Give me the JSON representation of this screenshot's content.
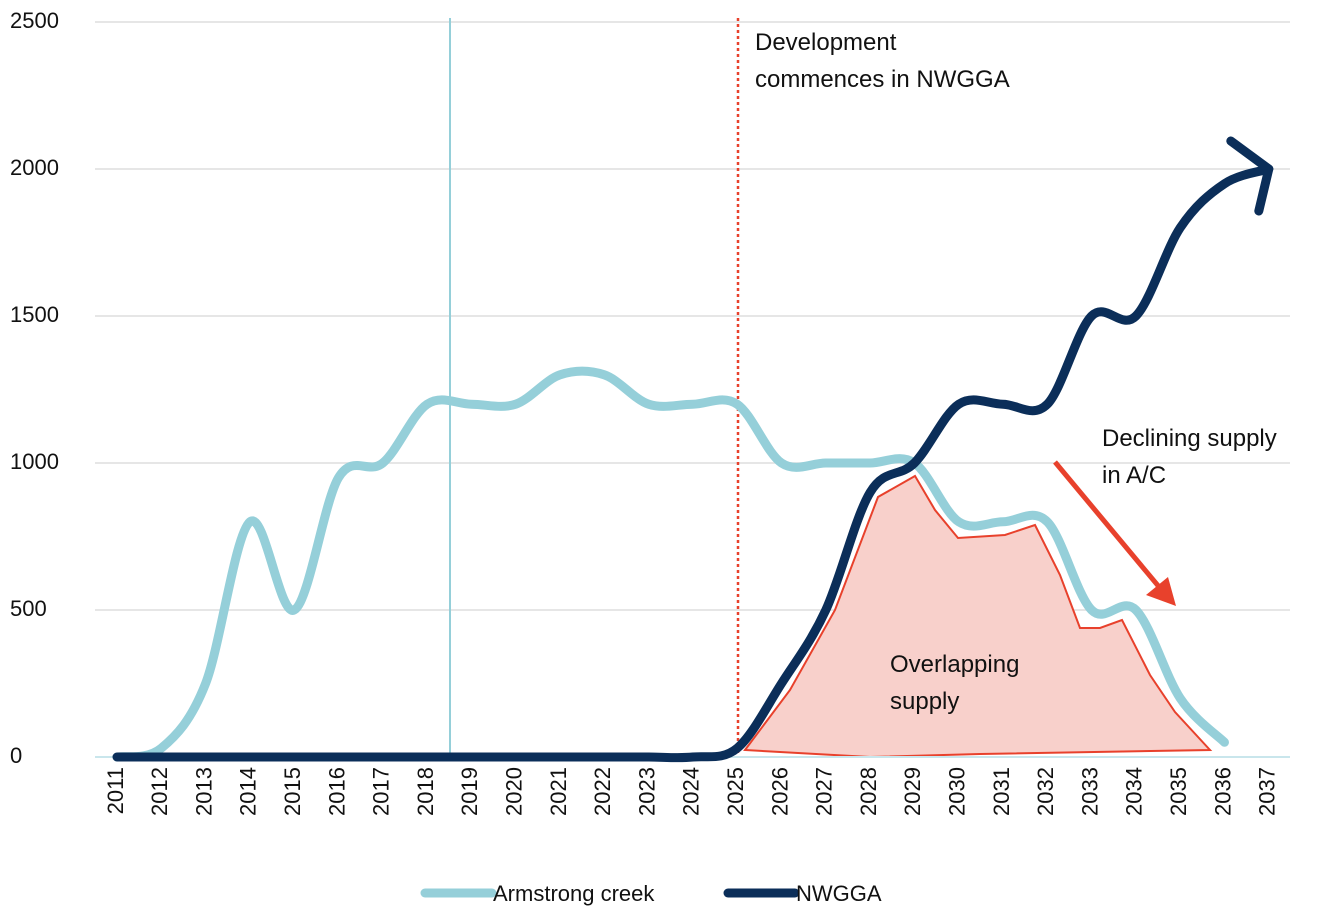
{
  "chart_data": {
    "type": "line",
    "categories": [
      "2011",
      "2012",
      "2013",
      "2014",
      "2015",
      "2016",
      "2017",
      "2018",
      "2019",
      "2020",
      "2021",
      "2022",
      "2023",
      "2024",
      "2025",
      "2026",
      "2027",
      "2028",
      "2029",
      "2030",
      "2031",
      "2032",
      "2033",
      "2034",
      "2035",
      "2036",
      "2037"
    ],
    "series": [
      {
        "name": "Armstrong creek",
        "color": "#95cfd9",
        "values": [
          0,
          30,
          250,
          800,
          500,
          950,
          1000,
          1200,
          1200,
          1200,
          1300,
          1300,
          1200,
          1200,
          1200,
          1000,
          1000,
          1000,
          1000,
          800,
          800,
          800,
          500,
          500,
          200,
          50,
          null
        ]
      },
      {
        "name": "NWGGA",
        "color": "#0b2e59",
        "values": [
          0,
          0,
          0,
          0,
          0,
          0,
          0,
          0,
          0,
          0,
          0,
          0,
          0,
          0,
          30,
          250,
          500,
          900,
          1000,
          1200,
          1200,
          1200,
          1500,
          1500,
          1800,
          1950,
          2000
        ]
      }
    ],
    "ylim": [
      0,
      2500
    ],
    "yticks": [
      0,
      500,
      1000,
      1500,
      2000,
      2500
    ],
    "grid": true,
    "annotations": [
      {
        "lines": [
          "Development",
          "commences in NWGGA"
        ]
      },
      {
        "lines": [
          "Declining supply",
          "in A/C"
        ]
      },
      {
        "lines": [
          "Overlapping",
          "supply"
        ]
      }
    ]
  }
}
